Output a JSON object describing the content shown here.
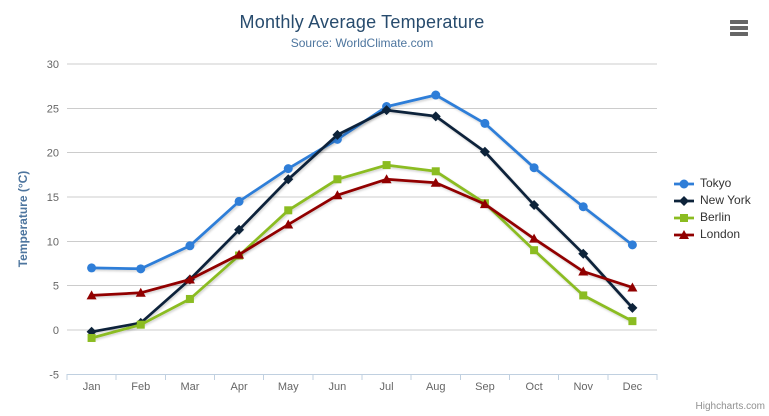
{
  "chart": {
    "credits_label": "Highcharts.com"
  },
  "icons": {
    "menu": "hamburger-icon"
  },
  "colors": {
    "title": "#274b6d",
    "subtitle": "#4d759e",
    "axis_title": "#4d759e",
    "tick_label": "#666666",
    "grid_line": "#cccccc",
    "axis_line": "#c0d0e0",
    "legend_text": "#333333",
    "credits": "#909090",
    "menu_icon": "#666666"
  },
  "chart_data": {
    "type": "line",
    "title": "Monthly Average Temperature",
    "subtitle": "Source: WorldClimate.com",
    "ylabel": "Temperature (°C)",
    "xlabel": "",
    "ylim": [
      -5,
      30
    ],
    "yticks": [
      -5,
      0,
      5,
      10,
      15,
      20,
      25,
      30
    ],
    "grid": true,
    "legend_position": "right",
    "categories": [
      "Jan",
      "Feb",
      "Mar",
      "Apr",
      "May",
      "Jun",
      "Jul",
      "Aug",
      "Sep",
      "Oct",
      "Nov",
      "Dec"
    ],
    "series": [
      {
        "name": "Tokyo",
        "color": "#2f7ed8",
        "marker": "circle",
        "values": [
          7.0,
          6.9,
          9.5,
          14.5,
          18.2,
          21.5,
          25.2,
          26.5,
          23.3,
          18.3,
          13.9,
          9.6
        ]
      },
      {
        "name": "New York",
        "color": "#0d233a",
        "marker": "diamond",
        "values": [
          -0.2,
          0.8,
          5.7,
          11.3,
          17.0,
          22.0,
          24.8,
          24.1,
          20.1,
          14.1,
          8.6,
          2.5
        ]
      },
      {
        "name": "Berlin",
        "color": "#8bbc21",
        "marker": "square",
        "values": [
          -0.9,
          0.6,
          3.5,
          8.4,
          13.5,
          17.0,
          18.6,
          17.9,
          14.3,
          9.0,
          3.9,
          1.0
        ]
      },
      {
        "name": "London",
        "color": "#910000",
        "marker": "triangle",
        "values": [
          3.9,
          4.2,
          5.7,
          8.5,
          11.9,
          15.2,
          17.0,
          16.6,
          14.2,
          10.3,
          6.6,
          4.8
        ]
      }
    ],
    "credits": "Highcharts.com"
  }
}
